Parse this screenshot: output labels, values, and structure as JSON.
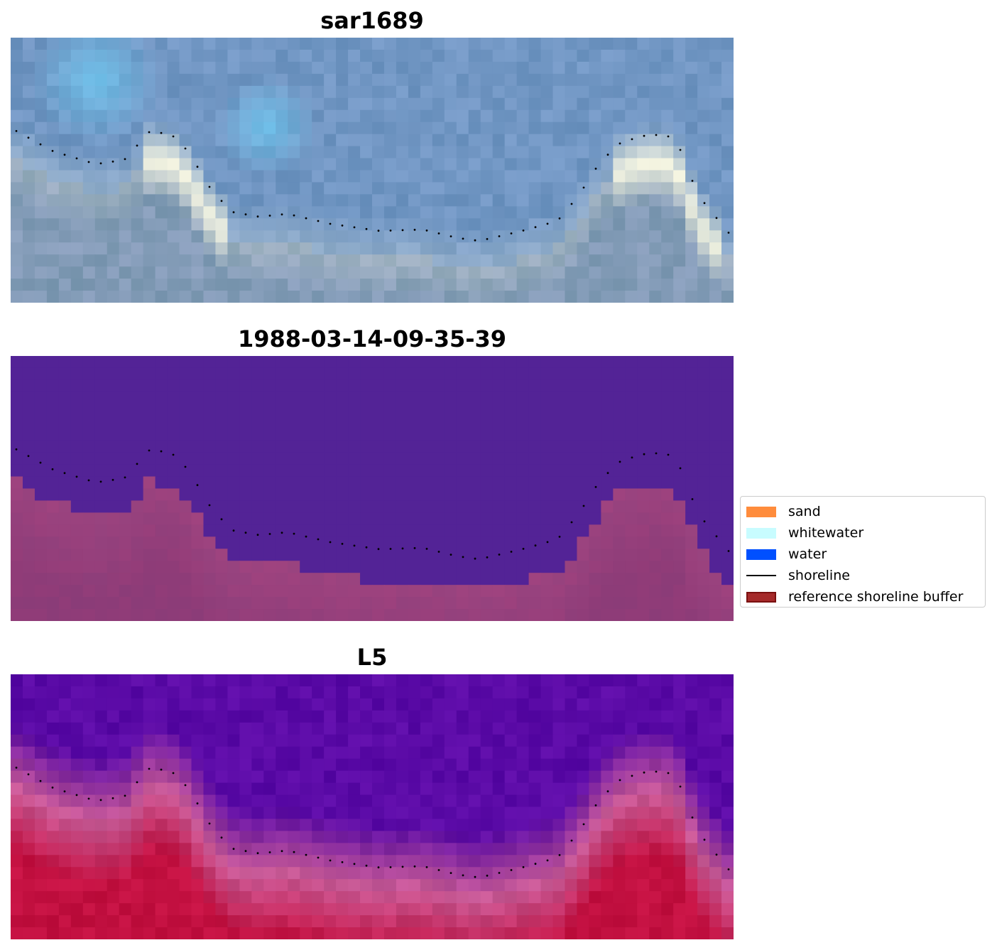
{
  "panels": [
    {
      "title": "sar1689"
    },
    {
      "title": "1988-03-14-09-35-39"
    },
    {
      "title": "L5"
    }
  ],
  "legend": {
    "items": [
      {
        "label": "sand",
        "color": "#ff8c3c",
        "kind": "patch"
      },
      {
        "label": "whitewater",
        "color": "#c8fcff",
        "kind": "patch"
      },
      {
        "label": "water",
        "color": "#0050ff",
        "kind": "patch"
      },
      {
        "label": "shoreline",
        "color": "#000000",
        "kind": "line"
      },
      {
        "label": "reference shoreline buffer",
        "color": "#a52a2a",
        "kind": "patch-edge",
        "edge": "#7a1010"
      }
    ]
  },
  "colors": {
    "classification_background": "#532396",
    "classification_buffer": "#8a3c78",
    "ndwi_low": "#c21040",
    "ndwi_high": "#5a0aa6"
  }
}
